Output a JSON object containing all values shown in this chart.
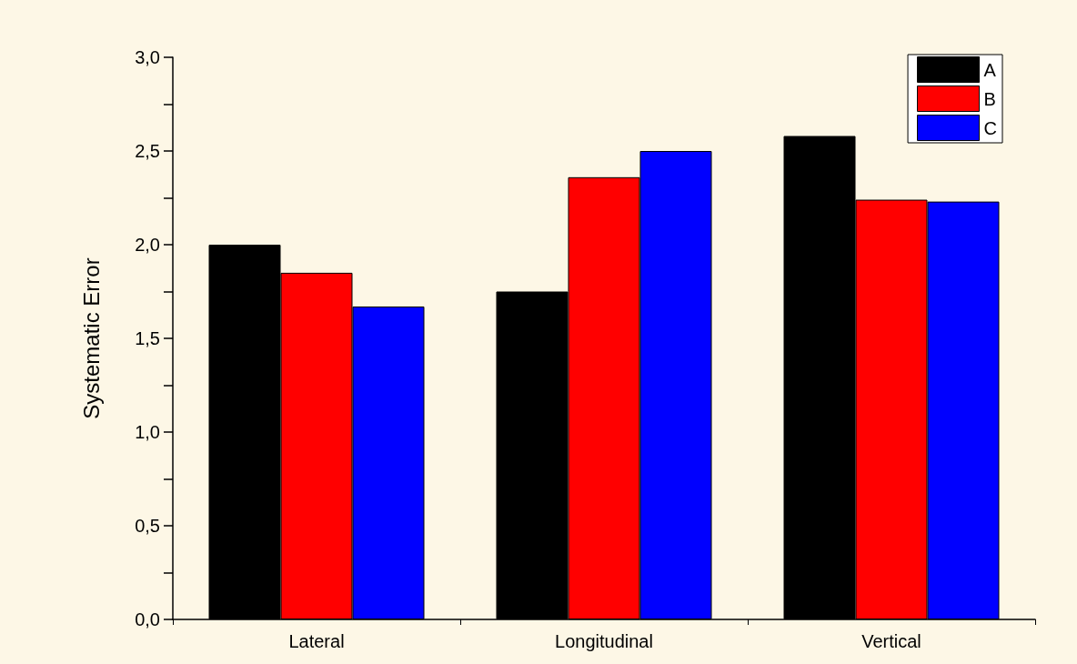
{
  "chart_data": {
    "type": "bar",
    "ylabel": "Systematic Error",
    "categories": [
      "Lateral",
      "Longitudinal",
      "Vertical"
    ],
    "series": [
      {
        "name": "A",
        "color": "#000000",
        "values": [
          2.0,
          1.75,
          2.58
        ]
      },
      {
        "name": "B",
        "color": "#ff0000",
        "values": [
          1.85,
          2.36,
          2.24
        ]
      },
      {
        "name": "C",
        "color": "#0000ff",
        "values": [
          1.67,
          2.5,
          2.23
        ]
      }
    ],
    "ylim": [
      0,
      3
    ],
    "yticks": [
      {
        "value": 0,
        "label": "0,0"
      },
      {
        "value": 0.5,
        "label": "0,5"
      },
      {
        "value": 1,
        "label": "1,0"
      },
      {
        "value": 1.5,
        "label": "1,5"
      },
      {
        "value": 2,
        "label": "2,0"
      },
      {
        "value": 2.5,
        "label": "2,5"
      },
      {
        "value": 3,
        "label": "3,0"
      }
    ],
    "grid": false,
    "legend": "top right"
  }
}
